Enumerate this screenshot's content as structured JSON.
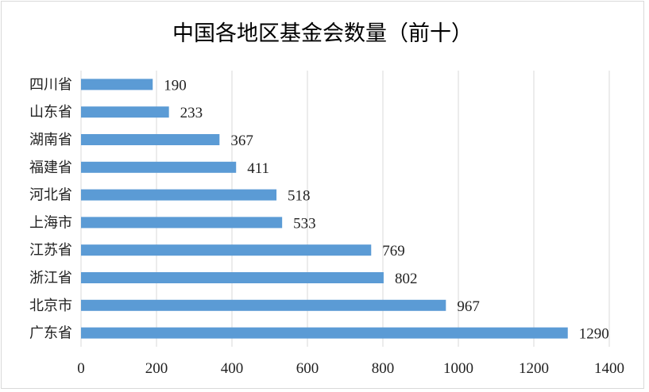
{
  "chart_data": {
    "type": "bar",
    "orientation": "horizontal",
    "title": "中国各地区基金会数量（前十）",
    "categories": [
      "四川省",
      "山东省",
      "湖南省",
      "福建省",
      "河北省",
      "上海市",
      "江苏省",
      "浙江省",
      "北京市",
      "广东省"
    ],
    "values": [
      190,
      233,
      367,
      411,
      518,
      533,
      769,
      802,
      967,
      1290
    ],
    "xlim": [
      0,
      1400
    ],
    "xticks": [
      0,
      200,
      400,
      600,
      800,
      1000,
      1200,
      1400
    ],
    "xlabel": "",
    "ylabel": "",
    "grid": true,
    "data_labels": true,
    "bar_color": "#5b9bd5"
  }
}
